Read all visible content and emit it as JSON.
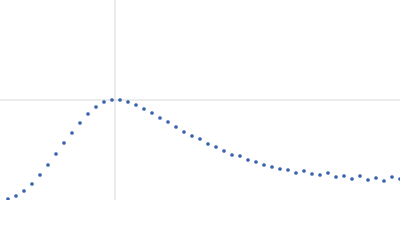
{
  "chart_data": {
    "type": "scatter",
    "x": [
      8,
      16,
      24,
      32,
      40,
      48,
      56,
      64,
      72,
      80,
      88,
      96,
      104,
      112,
      120,
      128,
      136,
      144,
      152,
      160,
      168,
      176,
      184,
      192,
      200,
      208,
      216,
      224,
      232,
      240,
      248,
      256,
      264,
      272,
      280,
      288,
      296,
      304,
      312,
      320,
      328,
      336,
      344,
      352,
      360,
      368,
      376,
      384,
      392,
      400
    ],
    "series": [
      {
        "color": "#3a64b0",
        "values": [
          1,
          4,
          9,
          16,
          25,
          35,
          46,
          57,
          67,
          77,
          86,
          93,
          98,
          100,
          100,
          98,
          95,
          91,
          87,
          82,
          78,
          73,
          68,
          64,
          61,
          56,
          53,
          49,
          45,
          44,
          40,
          38,
          35,
          33,
          31,
          30,
          27,
          29,
          26,
          25,
          27,
          23,
          24,
          21,
          24,
          20,
          22,
          19,
          23,
          21
        ]
      }
    ],
    "xlim": [
      0,
      400
    ],
    "ylim": [
      0,
      200
    ],
    "xticks": [
      115
    ],
    "yticks": [
      100
    ],
    "grid": true
  }
}
